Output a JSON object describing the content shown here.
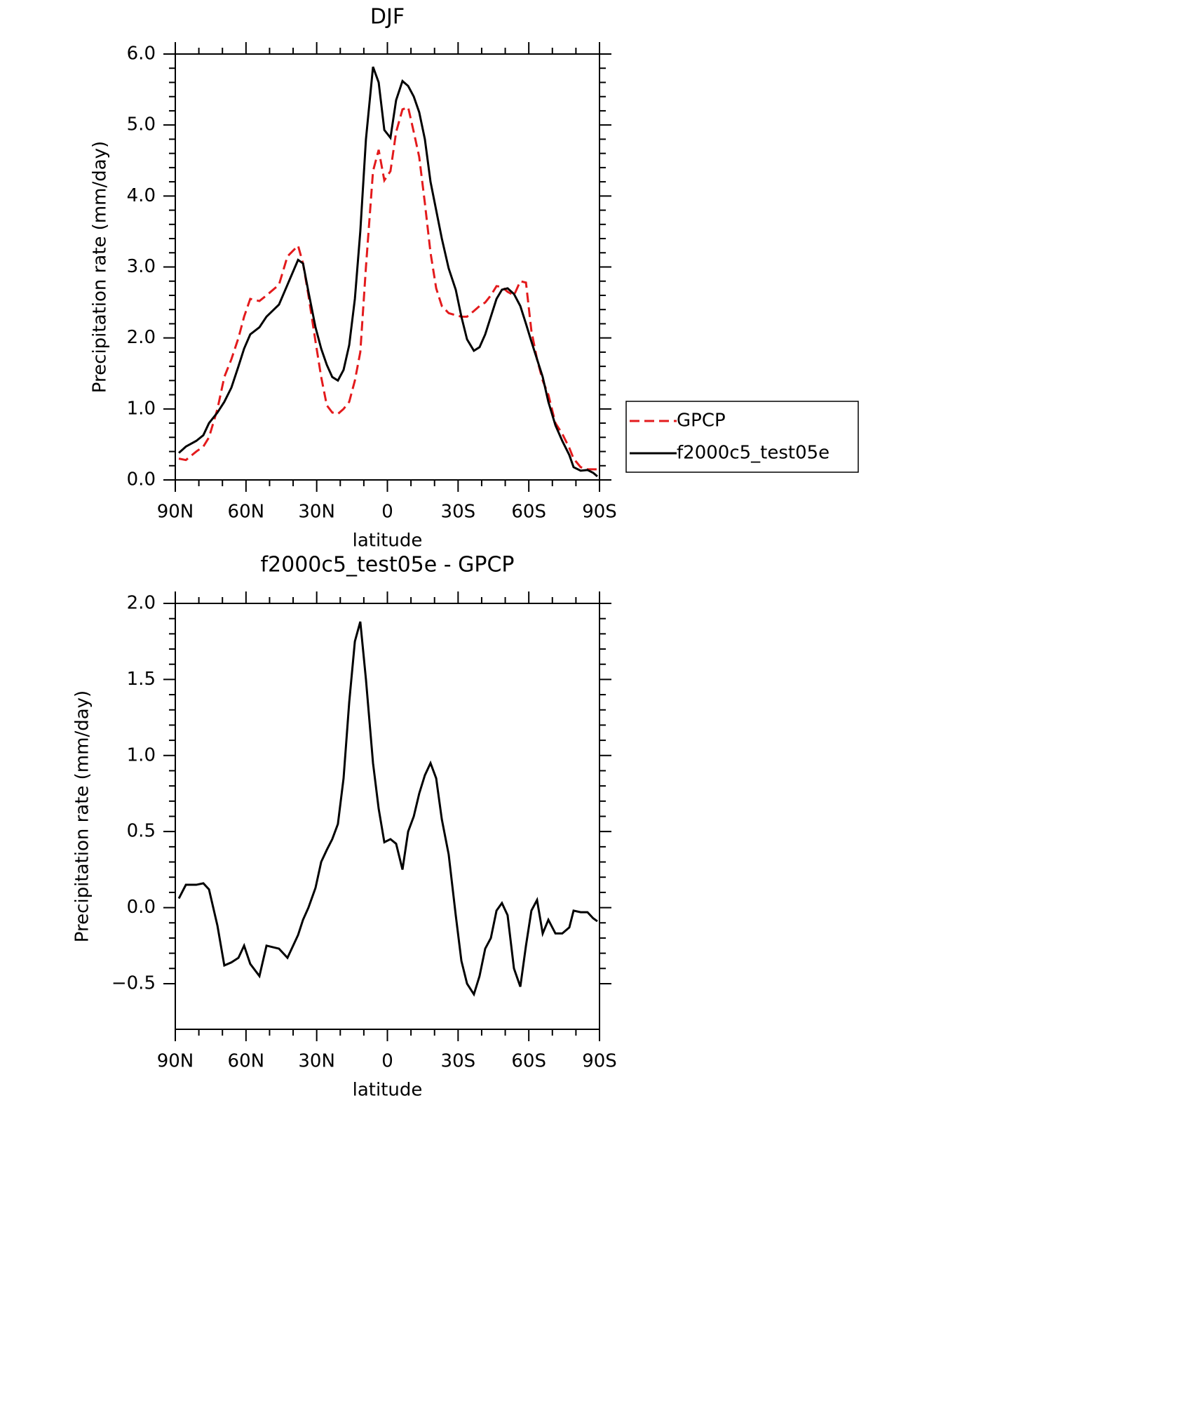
{
  "chart_data": [
    {
      "type": "line",
      "title": "DJF",
      "xlabel": "latitude",
      "ylabel": "Precipitation rate (mm/day)",
      "x": [
        88.5,
        85.5,
        81.1,
        78.1,
        75.7,
        72.1,
        69.2,
        66.2,
        63.2,
        60.8,
        58.2,
        54.3,
        51.3,
        46.0,
        42.4,
        37.9,
        35.8,
        33.5,
        30.5,
        28.1,
        25.7,
        23.4,
        21.0,
        18.6,
        16.2,
        13.8,
        11.5,
        9.1,
        6.1,
        3.7,
        1.3,
        -1.3,
        -3.7,
        -6.4,
        -8.8,
        -11.2,
        -13.5,
        -15.9,
        -18.3,
        -20.7,
        -23.1,
        -26.0,
        -29.0,
        -31.4,
        -33.8,
        -36.7,
        -39.1,
        -41.5,
        -43.9,
        -46.3,
        -48.6,
        -51.0,
        -53.7,
        -56.4,
        -58.8,
        -61.1,
        -63.5,
        -65.9,
        -68.3,
        -71.3,
        -74.2,
        -77.2,
        -79.0,
        -82.0,
        -84.9,
        -87.3,
        -89.1
      ],
      "series": [
        {
          "name": "GPCP",
          "color": "#e31a1c",
          "linestyle": "dashed",
          "values": [
            0.3,
            0.28,
            0.4,
            0.47,
            0.6,
            1.0,
            1.45,
            1.7,
            2.0,
            2.3,
            2.55,
            2.52,
            2.6,
            2.75,
            3.15,
            3.3,
            3.05,
            2.6,
            1.95,
            1.45,
            1.05,
            0.95,
            0.93,
            1.0,
            1.1,
            1.4,
            1.8,
            3.0,
            4.35,
            4.65,
            4.22,
            4.35,
            4.9,
            5.22,
            5.25,
            4.9,
            4.55,
            3.9,
            3.2,
            2.7,
            2.45,
            2.35,
            2.32,
            2.3,
            2.3,
            2.38,
            2.45,
            2.5,
            2.6,
            2.73,
            2.72,
            2.65,
            2.6,
            2.8,
            2.78,
            2.1,
            1.7,
            1.4,
            1.2,
            0.8,
            0.65,
            0.45,
            0.3,
            0.18,
            0.15,
            0.15,
            0.15
          ]
        },
        {
          "name": "f2000c5_test05e",
          "color": "#000000",
          "linestyle": "solid",
          "values": [
            0.38,
            0.47,
            0.55,
            0.63,
            0.8,
            0.95,
            1.1,
            1.3,
            1.6,
            1.85,
            2.05,
            2.15,
            2.3,
            2.47,
            2.75,
            3.1,
            3.05,
            2.65,
            2.15,
            1.85,
            1.62,
            1.45,
            1.4,
            1.55,
            1.9,
            2.55,
            3.5,
            4.8,
            5.82,
            5.6,
            4.93,
            4.82,
            5.35,
            5.62,
            5.55,
            5.4,
            5.18,
            4.8,
            4.2,
            3.8,
            3.4,
            2.98,
            2.68,
            2.3,
            1.98,
            1.82,
            1.87,
            2.05,
            2.3,
            2.55,
            2.68,
            2.7,
            2.62,
            2.45,
            2.2,
            1.95,
            1.7,
            1.45,
            1.1,
            0.77,
            0.55,
            0.35,
            0.18,
            0.13,
            0.14,
            0.1,
            0.05
          ]
        }
      ],
      "xlim": [
        90,
        -90
      ],
      "xticks": [
        {
          "value": 90,
          "label": "90N"
        },
        {
          "value": 60,
          "label": "60N"
        },
        {
          "value": 30,
          "label": "30N"
        },
        0,
        {
          "value": -30,
          "label": "30S"
        },
        {
          "value": -60,
          "label": "60S"
        },
        {
          "value": -90,
          "label": "90S"
        }
      ],
      "ylim": [
        0,
        6
      ],
      "yticks": [
        {
          "value": 0,
          "label": "0.0"
        },
        {
          "value": 1,
          "label": "1.0"
        },
        {
          "value": 2,
          "label": "2.0"
        },
        {
          "value": 3,
          "label": "3.0"
        },
        {
          "value": 4,
          "label": "4.0"
        },
        {
          "value": 5,
          "label": "5.0"
        },
        {
          "value": 6,
          "label": "6.0"
        }
      ],
      "legend": "right"
    },
    {
      "type": "line",
      "title": "f2000c5_test05e - GPCP",
      "xlabel": "latitude",
      "ylabel": "Precipitation rate (mm/day)",
      "x": [
        88.5,
        85.5,
        81.1,
        78.1,
        75.7,
        72.1,
        69.2,
        66.2,
        63.2,
        60.8,
        58.2,
        54.3,
        51.3,
        46.0,
        42.4,
        37.9,
        35.8,
        33.5,
        30.5,
        28.1,
        25.7,
        23.4,
        21.0,
        18.6,
        16.2,
        13.8,
        11.5,
        9.1,
        6.1,
        3.7,
        1.3,
        -1.3,
        -3.7,
        -6.4,
        -8.8,
        -11.2,
        -13.5,
        -15.9,
        -18.3,
        -20.7,
        -23.1,
        -26.0,
        -29.0,
        -31.4,
        -33.8,
        -36.7,
        -39.1,
        -41.5,
        -43.9,
        -46.3,
        -48.6,
        -51.0,
        -53.7,
        -56.4,
        -58.8,
        -61.1,
        -63.5,
        -65.9,
        -68.3,
        -71.3,
        -74.2,
        -77.2,
        -79.0,
        -82.0,
        -84.9,
        -87.3,
        -89.1
      ],
      "values": [
        0.06,
        0.15,
        0.15,
        0.16,
        0.12,
        -0.12,
        -0.38,
        -0.36,
        -0.33,
        -0.25,
        -0.37,
        -0.45,
        -0.25,
        -0.27,
        -0.33,
        -0.18,
        -0.08,
        0.0,
        0.13,
        0.3,
        0.38,
        0.45,
        0.55,
        0.85,
        1.35,
        1.75,
        1.88,
        1.5,
        0.95,
        0.65,
        0.43,
        0.45,
        0.42,
        0.25,
        0.5,
        0.6,
        0.75,
        0.87,
        0.95,
        0.85,
        0.58,
        0.35,
        -0.05,
        -0.35,
        -0.5,
        -0.57,
        -0.45,
        -0.27,
        -0.2,
        -0.02,
        0.03,
        -0.05,
        -0.4,
        -0.52,
        -0.25,
        -0.02,
        0.05,
        -0.17,
        -0.08,
        -0.17,
        -0.17,
        -0.13,
        -0.02,
        -0.03,
        -0.03,
        -0.07,
        -0.09
      ],
      "color": "#000000",
      "xlim": [
        90,
        -90
      ],
      "xticks": [
        {
          "value": 90,
          "label": "90N"
        },
        {
          "value": 60,
          "label": "60N"
        },
        {
          "value": 30,
          "label": "30N"
        },
        0,
        {
          "value": -30,
          "label": "30S"
        },
        {
          "value": -60,
          "label": "60S"
        },
        {
          "value": -90,
          "label": "90S"
        }
      ],
      "ylim": [
        -0.8,
        2.0
      ],
      "yticks": [
        {
          "value": -0.5,
          "label": "−0.5"
        },
        {
          "value": 0,
          "label": "0.0"
        },
        0.5,
        {
          "value": 1,
          "label": "1.0"
        },
        1.5,
        {
          "value": 2,
          "label": "2.0"
        }
      ]
    }
  ]
}
